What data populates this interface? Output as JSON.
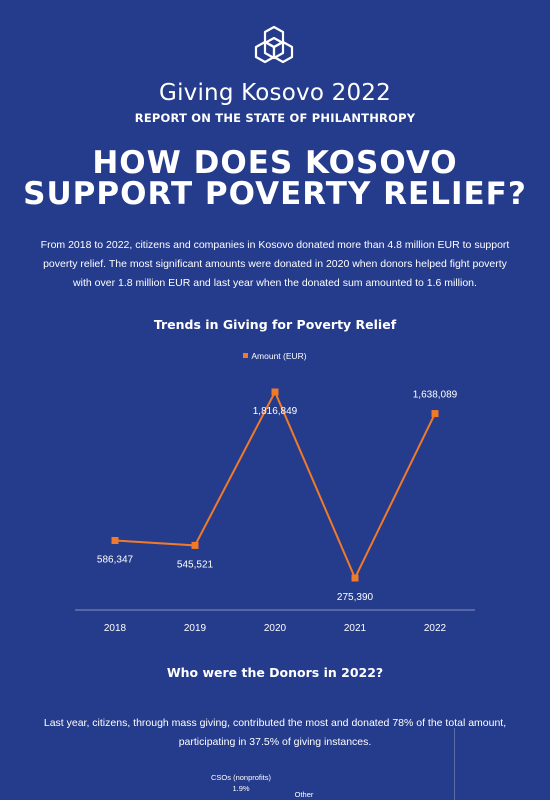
{
  "header": {
    "brand": "Giving Kosovo 2022",
    "subtitle": "REPORT ON THE STATE OF PHILANTHROPY",
    "headline_line1": "HOW DOES KOSOVO",
    "headline_line2": "SUPPORT POVERTY RELIEF?",
    "logo_icon": "hexagon-knot-icon"
  },
  "intro": "From 2018 to 2022, citizens and companies in Kosovo donated more than 4.8 million EUR to support poverty relief. The most significant amounts were donated in 2020 when donors helped fight poverty with over 1.8 million EUR and last year when the donated sum amounted to 1.6 million.",
  "chart_data": {
    "type": "line",
    "title": "Trends in Giving for Poverty Relief",
    "x": [
      "2018",
      "2019",
      "2020",
      "2021",
      "2022"
    ],
    "series": [
      {
        "name": "Amount (EUR)",
        "values": [
          586347,
          545521,
          1816849,
          275390,
          1638089
        ],
        "labels": [
          "586,347",
          "545,521",
          "1,816,849",
          "275,390",
          "1,638,089"
        ],
        "color": "#f07a2a"
      }
    ],
    "legend": "top-center",
    "grid": false
  },
  "donors": {
    "title": "Who were the Donors in 2022?",
    "text": "Last year, citizens, through mass giving, contributed the most and donated 78% of the total amount, participating in 37.5% of giving instances.",
    "pie_labels": {
      "cso_label": "CSOs (nonprofits)",
      "cso_value": "1.9%",
      "other_label": "Other"
    }
  },
  "colors": {
    "background": "#253b8c",
    "accent": "#f07a2a",
    "text": "#ffffff"
  }
}
